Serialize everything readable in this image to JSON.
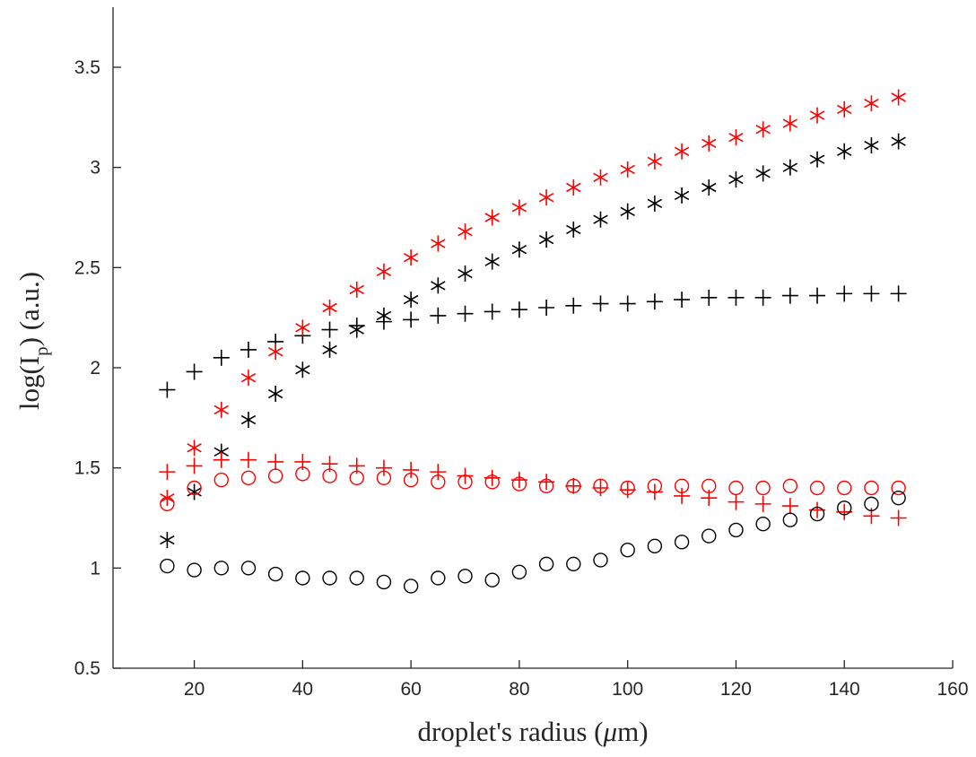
{
  "chart_data": {
    "type": "scatter",
    "title": "",
    "xlabel": {
      "prefix": "droplet's radius   (",
      "mu": "μ",
      "suffix": "m)"
    },
    "ylabel": {
      "prefix": "log(I",
      "sub": "p",
      "suffix": ")   (a.u.)"
    },
    "xlim": [
      5,
      160
    ],
    "ylim": [
      0.5,
      3.8
    ],
    "xticks": [
      "20",
      "40",
      "60",
      "80",
      "100",
      "120",
      "140",
      "160"
    ],
    "yticks": [
      "0.5",
      "1",
      "1.5",
      "2",
      "2.5",
      "3",
      "3.5"
    ],
    "grid": false,
    "legend": false,
    "x": [
      15,
      20,
      25,
      30,
      35,
      40,
      45,
      50,
      55,
      60,
      65,
      70,
      75,
      80,
      85,
      90,
      95,
      100,
      105,
      110,
      115,
      120,
      125,
      130,
      135,
      140,
      145,
      150
    ],
    "series": [
      {
        "color": "#000000",
        "marker": "plus",
        "values": [
          1.89,
          1.98,
          2.05,
          2.09,
          2.13,
          2.16,
          2.19,
          2.21,
          2.23,
          2.24,
          2.26,
          2.27,
          2.28,
          2.29,
          2.3,
          2.31,
          2.32,
          2.32,
          2.33,
          2.34,
          2.35,
          2.35,
          2.35,
          2.36,
          2.36,
          2.37,
          2.37,
          2.37
        ]
      },
      {
        "color": "#000000",
        "marker": "asterisk",
        "values": [
          1.14,
          1.38,
          1.58,
          1.74,
          1.87,
          1.99,
          2.09,
          2.19,
          2.26,
          2.34,
          2.41,
          2.47,
          2.53,
          2.59,
          2.64,
          2.69,
          2.74,
          2.78,
          2.82,
          2.86,
          2.9,
          2.94,
          2.97,
          3.0,
          3.04,
          3.08,
          3.11,
          3.13
        ]
      },
      {
        "color": "#ff0000",
        "marker": "asterisk",
        "values": [
          1.35,
          1.6,
          1.79,
          1.95,
          2.08,
          2.2,
          2.3,
          2.39,
          2.48,
          2.55,
          2.62,
          2.68,
          2.75,
          2.8,
          2.85,
          2.9,
          2.95,
          2.99,
          3.03,
          3.08,
          3.12,
          3.15,
          3.19,
          3.22,
          3.26,
          3.29,
          3.32,
          3.35
        ]
      },
      {
        "color": "#ff0000",
        "marker": "plus",
        "values": [
          1.48,
          1.51,
          1.54,
          1.54,
          1.53,
          1.53,
          1.52,
          1.51,
          1.5,
          1.49,
          1.48,
          1.46,
          1.45,
          1.44,
          1.43,
          1.41,
          1.4,
          1.39,
          1.38,
          1.36,
          1.35,
          1.33,
          1.32,
          1.31,
          1.29,
          1.28,
          1.26,
          1.25
        ]
      },
      {
        "color": "#ff0000",
        "marker": "circle",
        "values": [
          1.32,
          1.4,
          1.44,
          1.45,
          1.46,
          1.47,
          1.46,
          1.45,
          1.45,
          1.44,
          1.43,
          1.43,
          1.43,
          1.42,
          1.41,
          1.41,
          1.41,
          1.4,
          1.41,
          1.41,
          1.41,
          1.4,
          1.4,
          1.41,
          1.4,
          1.4,
          1.4,
          1.4
        ]
      },
      {
        "color": "#000000",
        "marker": "circle",
        "values": [
          1.01,
          0.99,
          1.0,
          1.0,
          0.97,
          0.95,
          0.95,
          0.95,
          0.93,
          0.91,
          0.95,
          0.96,
          0.94,
          0.98,
          1.02,
          1.02,
          1.04,
          1.09,
          1.11,
          1.13,
          1.16,
          1.19,
          1.22,
          1.24,
          1.27,
          1.3,
          1.32,
          1.35
        ]
      }
    ]
  }
}
